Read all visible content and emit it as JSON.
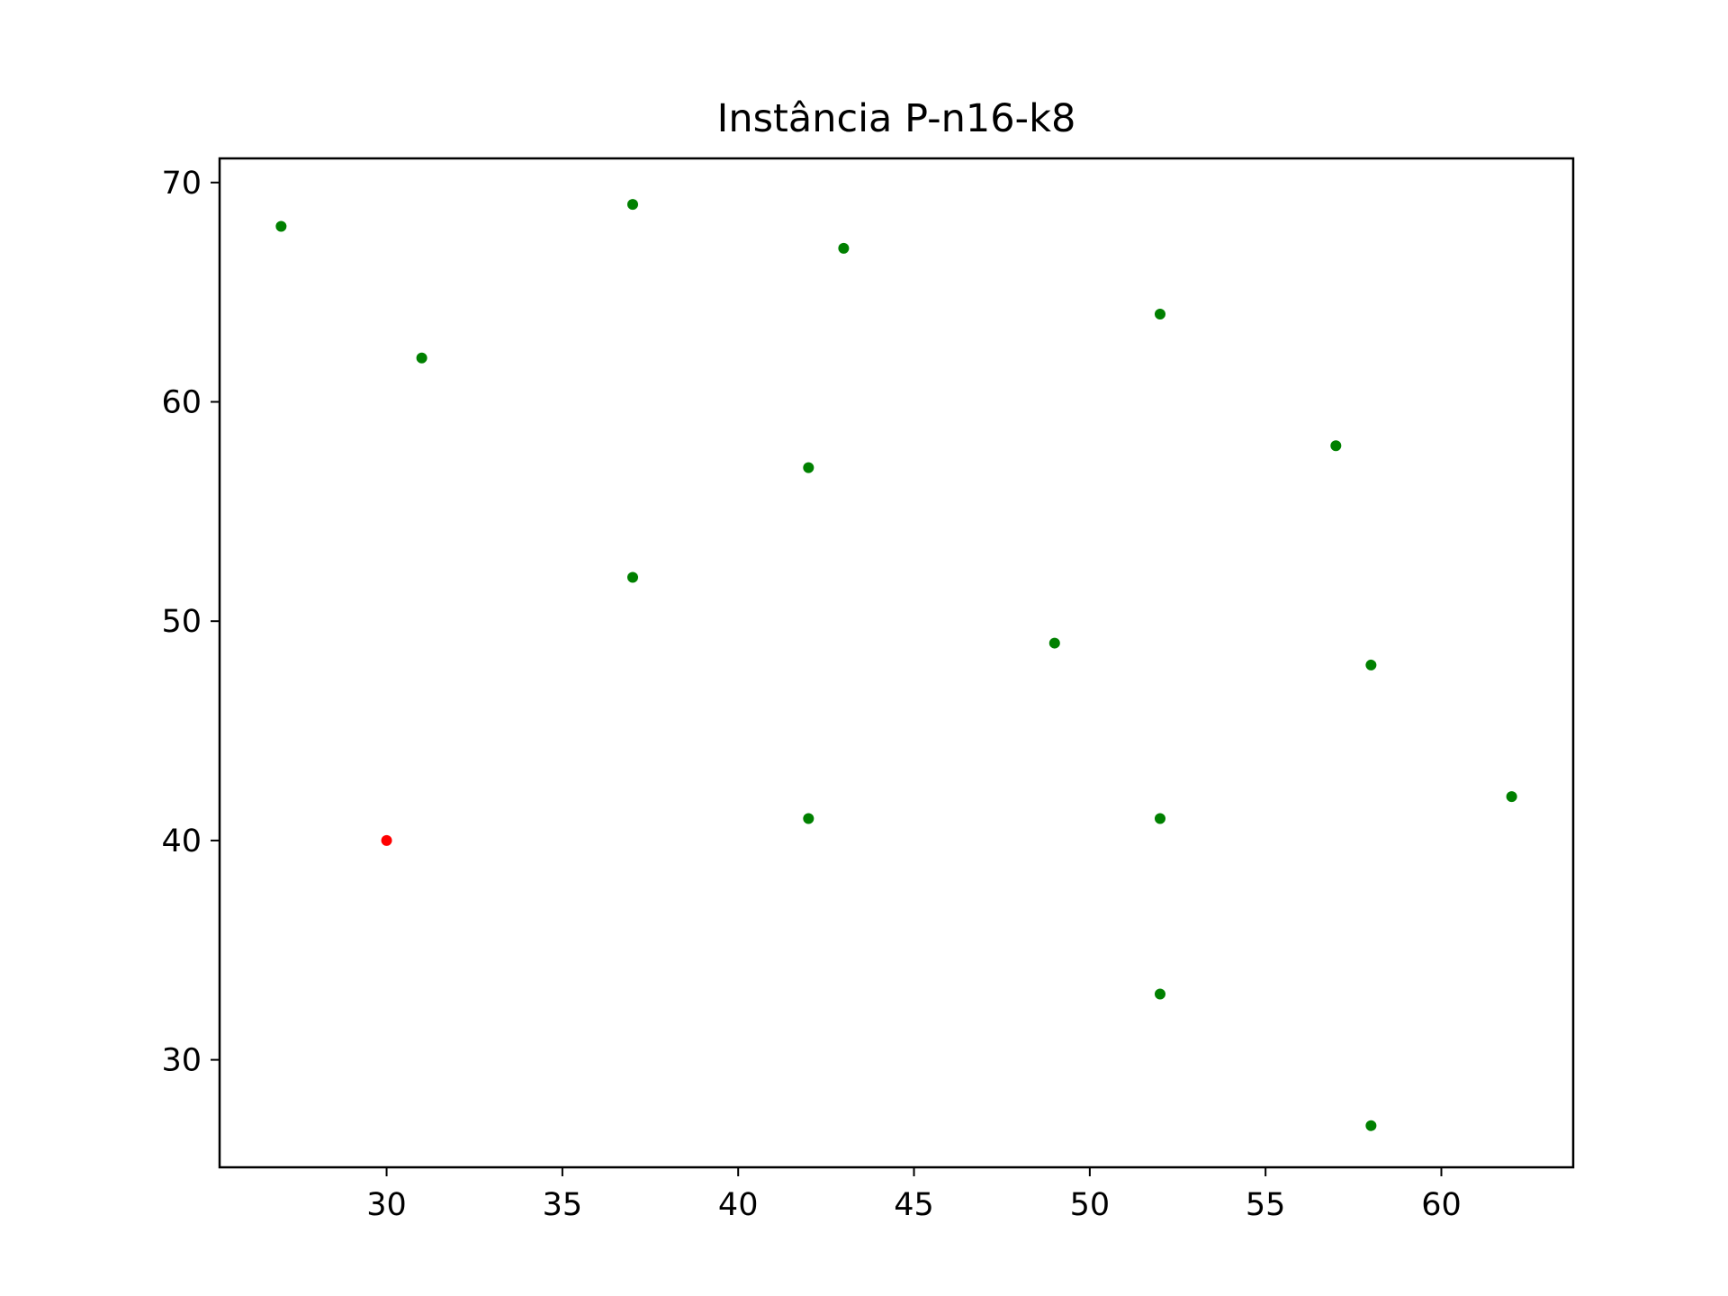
{
  "chart_data": {
    "type": "scatter",
    "title": "Instância P-n16-k8",
    "xlabel": "",
    "ylabel": "",
    "xlim": [
      25.25,
      63.75
    ],
    "ylim": [
      25.1,
      71.1
    ],
    "x_ticks": [
      30,
      35,
      40,
      45,
      50,
      55,
      60
    ],
    "y_ticks": [
      30,
      40,
      50,
      60,
      70
    ],
    "grid": false,
    "legend": "none",
    "series": [
      {
        "color": "#ff0000",
        "points": [
          {
            "x": 30,
            "y": 40
          }
        ]
      },
      {
        "color": "#008000",
        "points": [
          {
            "x": 27,
            "y": 68
          },
          {
            "x": 37,
            "y": 69
          },
          {
            "x": 43,
            "y": 67
          },
          {
            "x": 52,
            "y": 64
          },
          {
            "x": 31,
            "y": 62
          },
          {
            "x": 57,
            "y": 58
          },
          {
            "x": 42,
            "y": 57
          },
          {
            "x": 37,
            "y": 52
          },
          {
            "x": 49,
            "y": 49
          },
          {
            "x": 58,
            "y": 48
          },
          {
            "x": 62,
            "y": 42
          },
          {
            "x": 42,
            "y": 41
          },
          {
            "x": 52,
            "y": 41
          },
          {
            "x": 52,
            "y": 33
          },
          {
            "x": 58,
            "y": 27
          }
        ]
      }
    ]
  }
}
